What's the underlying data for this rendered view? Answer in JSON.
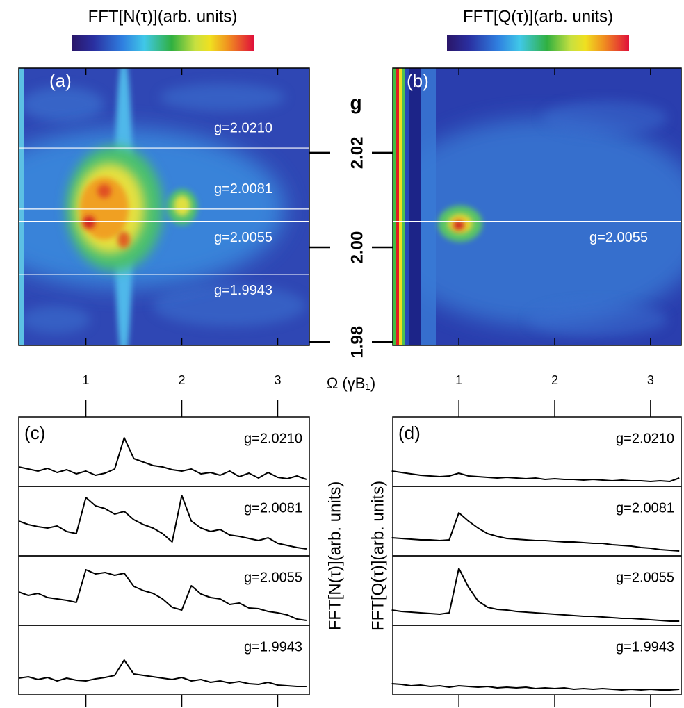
{
  "x_axis_label": "Ω (γB₁)",
  "chart_data": [
    {
      "type": "heatmap",
      "panel": "(a)",
      "colorbar_label": "FFT[N(τ)](arb. units)",
      "xlim": [
        0.3,
        3.33
      ],
      "xticks": [
        1,
        2,
        3
      ],
      "ylim": [
        1.9793,
        2.0379
      ],
      "yticks": [
        2.02,
        {
          "value": 2.0,
          "label": "2.00"
        },
        1.98
      ],
      "y_axis_label": "g",
      "cuts": [
        {
          "value": 2.021,
          "label": "g=2.0210"
        },
        {
          "value": 2.0081,
          "label": "g=2.0081"
        },
        {
          "value": 2.0055,
          "label": "g=2.0055"
        },
        {
          "value": 1.9943,
          "label": "g=1.9943"
        }
      ]
    },
    {
      "type": "heatmap",
      "panel": "(b)",
      "colorbar_label": "FFT[Q(τ)](arb. units)",
      "xlim": [
        0.31,
        3.32
      ],
      "xticks": [
        1,
        2,
        3
      ],
      "ylim": [
        1.9793,
        2.0379
      ],
      "yticks": [
        2.02,
        {
          "value": 2.0,
          "label": "2.00"
        },
        1.98
      ],
      "cuts": [
        {
          "value": 2.0055,
          "label": "g=2.0055"
        }
      ]
    },
    {
      "type": "line",
      "panel": "(c)",
      "y_axis_label": "FFT[N(τ)](arb. units)",
      "xlim": [
        0.3,
        3.33
      ],
      "xticks": [
        1,
        2,
        3
      ],
      "ylim": [
        0,
        10
      ],
      "x": [
        0.3,
        0.4,
        0.5,
        0.6,
        0.7,
        0.8,
        0.9,
        1.0,
        1.1,
        1.2,
        1.3,
        1.4,
        1.5,
        1.6,
        1.7,
        1.8,
        1.9,
        2.0,
        2.1,
        2.2,
        2.3,
        2.4,
        2.5,
        2.6,
        2.7,
        2.8,
        2.9,
        3.0,
        3.1,
        3.2,
        3.3
      ],
      "series": [
        {
          "name": "g=2.0210",
          "color": "#000000",
          "values": [
            2.8,
            2.5,
            2.2,
            2.6,
            2.0,
            2.4,
            1.8,
            2.2,
            1.6,
            1.9,
            2.5,
            7.0,
            4.0,
            3.5,
            3.0,
            2.8,
            2.4,
            2.2,
            2.5,
            1.8,
            2.0,
            1.6,
            2.2,
            1.4,
            1.9,
            1.2,
            2.0,
            1.3,
            1.1,
            1.5,
            1.0
          ]
        },
        {
          "name": "g=2.0081",
          "color": "#000000",
          "values": [
            5.0,
            4.5,
            4.2,
            4.0,
            4.3,
            3.5,
            3.2,
            8.4,
            7.2,
            6.8,
            6.0,
            6.4,
            5.2,
            4.5,
            4.0,
            3.2,
            2.0,
            8.7,
            5.0,
            4.0,
            3.5,
            3.8,
            3.0,
            2.8,
            2.5,
            2.2,
            2.6,
            1.8,
            1.5,
            1.2,
            1.0
          ]
        },
        {
          "name": "g=2.0055",
          "color": "#000000",
          "values": [
            4.8,
            4.3,
            4.6,
            4.0,
            3.8,
            3.6,
            3.3,
            8.0,
            7.4,
            7.6,
            7.2,
            7.5,
            5.6,
            5.0,
            4.6,
            3.8,
            2.6,
            2.2,
            5.7,
            4.5,
            4.0,
            3.8,
            3.0,
            3.2,
            2.5,
            2.4,
            2.0,
            1.8,
            1.5,
            0.9,
            0.7
          ]
        },
        {
          "name": "g=1.9943",
          "color": "#000000",
          "values": [
            2.4,
            2.6,
            2.2,
            2.5,
            2.0,
            2.4,
            2.1,
            2.0,
            2.3,
            2.5,
            2.8,
            5.0,
            3.0,
            2.8,
            2.6,
            2.4,
            2.2,
            2.5,
            2.0,
            2.2,
            1.8,
            2.0,
            1.7,
            1.9,
            1.6,
            1.5,
            1.8,
            1.4,
            1.3,
            1.2,
            1.2
          ]
        }
      ]
    },
    {
      "type": "line",
      "panel": "(d)",
      "y_axis_label": "FFT[Q(τ)](arb. units)",
      "xlim": [
        0.31,
        3.32
      ],
      "xticks": [
        1,
        2,
        3
      ],
      "ylim": [
        0,
        10
      ],
      "x": [
        0.3,
        0.4,
        0.5,
        0.6,
        0.7,
        0.8,
        0.9,
        1.0,
        1.1,
        1.2,
        1.3,
        1.4,
        1.5,
        1.6,
        1.7,
        1.8,
        1.9,
        2.0,
        2.1,
        2.2,
        2.3,
        2.4,
        2.5,
        2.6,
        2.7,
        2.8,
        2.9,
        3.0,
        3.1,
        3.2,
        3.3
      ],
      "series": [
        {
          "name": "g=2.0210",
          "color": "#000000",
          "values": [
            2.2,
            2.0,
            1.8,
            1.6,
            1.5,
            1.4,
            1.5,
            1.9,
            1.5,
            1.4,
            1.3,
            1.2,
            1.3,
            1.2,
            1.1,
            1.2,
            1.0,
            1.1,
            1.0,
            1.0,
            0.9,
            1.0,
            0.9,
            0.8,
            0.9,
            0.8,
            0.8,
            0.7,
            0.8,
            0.7,
            1.2
          ]
        },
        {
          "name": "g=2.0081",
          "color": "#000000",
          "values": [
            2.6,
            2.5,
            2.4,
            2.3,
            2.3,
            2.2,
            2.3,
            6.2,
            5.0,
            4.0,
            3.2,
            2.8,
            2.5,
            2.4,
            2.3,
            2.2,
            2.2,
            2.1,
            2.0,
            2.0,
            1.9,
            1.8,
            1.8,
            1.6,
            1.5,
            1.4,
            1.2,
            1.1,
            0.9,
            0.8,
            0.7
          ]
        },
        {
          "name": "g=2.0055",
          "color": "#000000",
          "values": [
            2.2,
            2.0,
            1.9,
            1.8,
            1.7,
            1.6,
            1.8,
            8.2,
            5.5,
            3.5,
            2.6,
            2.3,
            2.2,
            2.0,
            1.9,
            1.8,
            1.7,
            1.6,
            1.5,
            1.4,
            1.3,
            1.3,
            1.2,
            1.1,
            1.0,
            1.0,
            0.9,
            0.8,
            0.7,
            0.6,
            0.6
          ]
        },
        {
          "name": "g=1.9943",
          "color": "#000000",
          "values": [
            1.6,
            1.5,
            1.3,
            1.4,
            1.2,
            1.3,
            1.1,
            1.3,
            1.2,
            1.1,
            1.2,
            1.0,
            1.1,
            1.0,
            1.1,
            0.9,
            1.0,
            0.9,
            1.0,
            0.8,
            0.9,
            0.8,
            0.9,
            0.8,
            0.7,
            0.8,
            0.7,
            0.8,
            0.7,
            0.7,
            0.8
          ]
        }
      ]
    }
  ]
}
